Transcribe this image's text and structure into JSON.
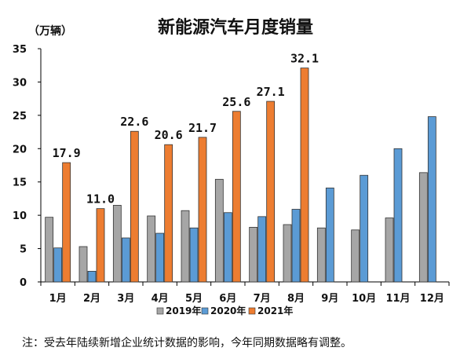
{
  "chart_data": {
    "type": "bar",
    "title": "新能源汽车月度销量",
    "unit_label": "（万辆）",
    "categories": [
      "1月",
      "2月",
      "3月",
      "4月",
      "5月",
      "6月",
      "7月",
      "8月",
      "9月",
      "10月",
      "11月",
      "12月"
    ],
    "series": [
      {
        "name": "2019年",
        "color": "#a6a6a6",
        "values": [
          9.7,
          5.3,
          11.5,
          9.9,
          10.7,
          15.4,
          8.2,
          8.6,
          8.1,
          7.8,
          9.6,
          16.4
        ]
      },
      {
        "name": "2020年",
        "color": "#5b9bd5",
        "values": [
          5.1,
          1.6,
          6.6,
          7.3,
          8.1,
          10.4,
          9.8,
          10.9,
          14.1,
          16.0,
          20.0,
          24.8
        ]
      },
      {
        "name": "2021年",
        "color": "#ed7d31",
        "values": [
          17.9,
          11.0,
          22.6,
          20.6,
          21.7,
          25.6,
          27.1,
          32.1,
          null,
          null,
          null,
          null
        ],
        "data_labels": [
          "17.9",
          "11.0",
          "22.6",
          "20.6",
          "21.7",
          "25.6",
          "27.1",
          "32.1"
        ]
      }
    ],
    "ylim": [
      0,
      35
    ],
    "yticks": [
      0,
      5,
      10,
      15,
      20,
      25,
      30,
      35
    ],
    "grid": false,
    "legend_position": "bottom"
  },
  "note": "注：受去年陆续新增企业统计数据的影响，今年同期数据略有调整。"
}
